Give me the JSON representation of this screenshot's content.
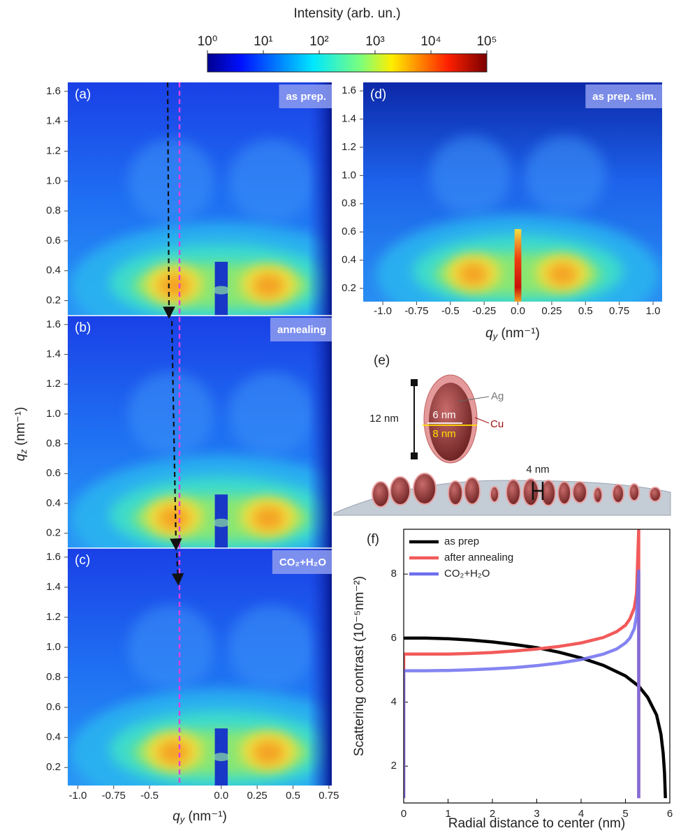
{
  "chart_data": [
    {
      "type": "colorbar",
      "title": "Intensity (arb. un.)",
      "log": true,
      "xlim": [
        1,
        100000
      ],
      "xticks": [
        {
          "value": 1,
          "label": "10⁰"
        },
        {
          "value": 10,
          "label": "10¹"
        },
        {
          "value": 100,
          "label": "10²"
        },
        {
          "value": 1000,
          "label": "10³"
        },
        {
          "value": 10000,
          "label": "10⁴"
        },
        {
          "value": 100000,
          "label": "10⁵"
        }
      ]
    },
    {
      "type": "heatmap",
      "simulated": false,
      "panels": [
        {
          "label": "(a)",
          "title": "as prep.",
          "ylim": [
            0.1,
            1.66
          ]
        },
        {
          "label": "(b)",
          "title": "annealing",
          "ylim": [
            0.1,
            1.66
          ]
        },
        {
          "label": "(c)",
          "title": "CO₂+H₂O",
          "ylim": [
            0.08,
            1.66
          ]
        }
      ],
      "xlim": [
        -1.07,
        0.77
      ],
      "xticks": [
        {
          "value": -1,
          "label": "-1.0"
        },
        -0.75,
        -0.5,
        {
          "value": 0,
          "label": "0.0"
        },
        0.25,
        0.5,
        0.75
      ],
      "yticks": [
        0.2,
        0.4,
        0.6,
        0.8,
        {
          "value": 1,
          "label": "1.0"
        },
        1.2,
        1.4,
        1.6
      ],
      "x_label": {
        "symbol": "q",
        "index": "y",
        "unit": " (nm⁻¹)"
      },
      "y_label": {
        "symbol": "q",
        "index": "z",
        "unit": " (nm⁻¹)"
      }
    },
    {
      "type": "heatmap",
      "simulated": true,
      "panels": [
        {
          "label": "(d)",
          "title": "as prep. sim.",
          "ylim": [
            0.106,
            1.66
          ]
        }
      ],
      "xlim": [
        -1.145,
        1.067
      ],
      "xticks": [
        {
          "value": -1,
          "label": "-1.0"
        },
        -0.75,
        -0.5,
        -0.25,
        {
          "value": 0,
          "label": "0.0"
        },
        0.25,
        0.5,
        0.75,
        {
          "value": 1,
          "label": "1.0"
        }
      ],
      "yticks": [
        0.2,
        0.4,
        0.6,
        0.8,
        {
          "value": 1,
          "label": "1.0"
        },
        1.2,
        1.4,
        1.6
      ],
      "x_label": {
        "symbol": "q",
        "index": "y",
        "unit": " (nm⁻¹)"
      }
    },
    {
      "type": "line",
      "label": "(f)",
      "x_label": "Radial distance to center (nm)",
      "y_label": "Scattering contrast (10⁻⁵nm⁻²)",
      "xlim": [
        0,
        6
      ],
      "ylim": [
        0.85,
        9.4
      ],
      "xticks": [
        0,
        1,
        2,
        3,
        4,
        5,
        6
      ],
      "yticks": [
        2,
        4,
        6,
        8
      ],
      "legend": "upper left",
      "series": [
        {
          "name": "as prep",
          "color": "#000000",
          "x": [
            0,
            0.5,
            1,
            1.5,
            2,
            2.5,
            3,
            3.5,
            4,
            4.5,
            5,
            5.3,
            5.5,
            5.7,
            5.8,
            5.85,
            5.88,
            5.9
          ],
          "values": [
            6.0,
            6.0,
            5.98,
            5.94,
            5.88,
            5.8,
            5.7,
            5.56,
            5.38,
            5.15,
            4.82,
            4.5,
            4.15,
            3.6,
            3.0,
            2.4,
            1.8,
            1.0
          ]
        },
        {
          "name": "after annealing",
          "color": "#f25a5a",
          "x": [
            0,
            0,
            0.5,
            1,
            1.5,
            2,
            2.5,
            3,
            3.5,
            4,
            4.5,
            4.8,
            5,
            5.1,
            5.2,
            5.25,
            5.3,
            5.3
          ],
          "values": [
            1,
            5.5,
            5.5,
            5.5,
            5.52,
            5.55,
            5.6,
            5.66,
            5.74,
            5.85,
            6.02,
            6.2,
            6.4,
            6.6,
            6.95,
            7.4,
            9.4,
            1
          ]
        },
        {
          "name": "CO₂+H₂O",
          "color": "#6e6ef0",
          "x": [
            0,
            0,
            0.5,
            1,
            1.5,
            2,
            2.5,
            3,
            3.5,
            4,
            4.5,
            4.8,
            5,
            5.1,
            5.2,
            5.25,
            5.3,
            5.3
          ],
          "values": [
            1,
            4.98,
            4.98,
            4.99,
            5.01,
            5.04,
            5.08,
            5.14,
            5.22,
            5.33,
            5.5,
            5.66,
            5.85,
            6.0,
            6.3,
            6.7,
            8.1,
            1
          ]
        }
      ]
    }
  ],
  "diagram": {
    "label": "(e)",
    "height": "12 nm",
    "core_width": "6 nm",
    "shell_width": "8 nm",
    "core": "Ag",
    "shell": "Cu",
    "gap": "4 nm"
  }
}
